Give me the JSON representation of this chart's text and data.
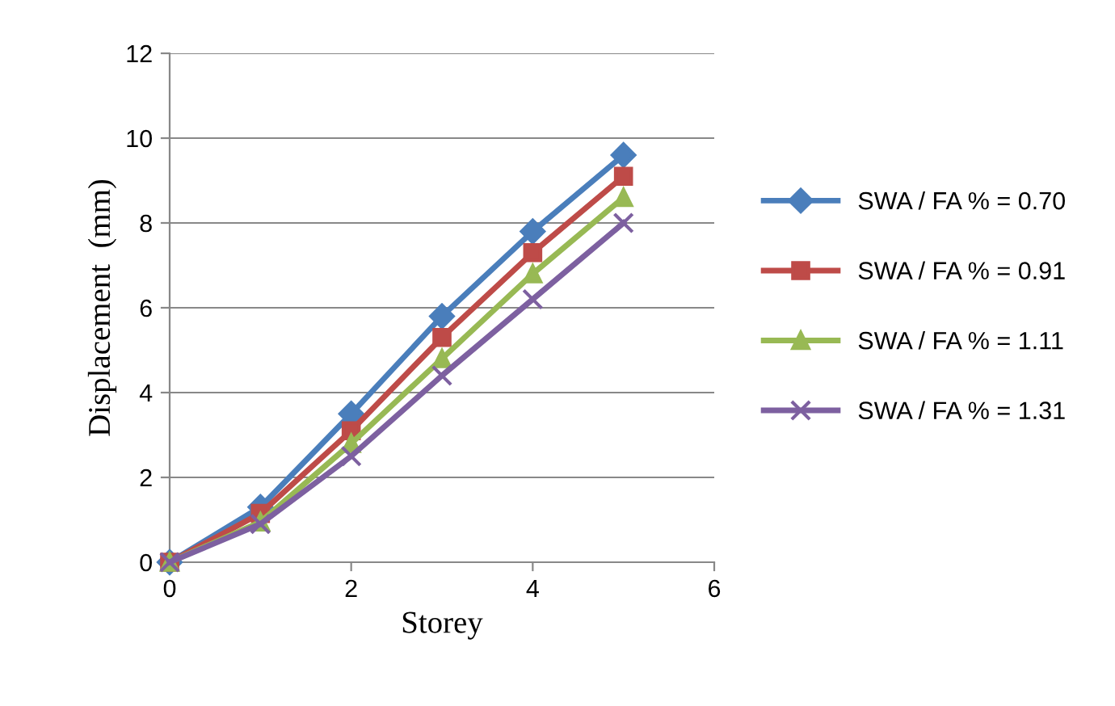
{
  "chart_data": {
    "type": "line",
    "xlabel": "Storey",
    "ylabel": "Displacement  (mm)",
    "x": [
      0,
      1,
      2,
      3,
      4,
      5
    ],
    "series": [
      {
        "name": "SWA / FA % = 0.70",
        "color": "#4a7ebb",
        "marker": "diamond",
        "values": [
          0,
          1.3,
          3.5,
          5.8,
          7.8,
          9.6
        ]
      },
      {
        "name": "SWA / FA % = 0.91",
        "color": "#be4b48",
        "marker": "square",
        "values": [
          0,
          1.15,
          3.1,
          5.3,
          7.3,
          9.1
        ]
      },
      {
        "name": "SWA / FA % = 1.11",
        "color": "#98b954",
        "marker": "triangle",
        "values": [
          0,
          0.95,
          2.8,
          4.8,
          6.8,
          8.6
        ]
      },
      {
        "name": "SWA / FA % = 1.31",
        "color": "#7d60a0",
        "marker": "cross",
        "values": [
          0,
          0.9,
          2.5,
          4.4,
          6.2,
          8.0
        ]
      }
    ],
    "xlim": [
      0,
      6
    ],
    "xticks": [
      0,
      2,
      4,
      6
    ],
    "ylim": [
      0,
      12
    ],
    "yticks": [
      0,
      2,
      4,
      6,
      8,
      10,
      12
    ],
    "grid": "y",
    "legend": "right",
    "line_style": "solid"
  }
}
